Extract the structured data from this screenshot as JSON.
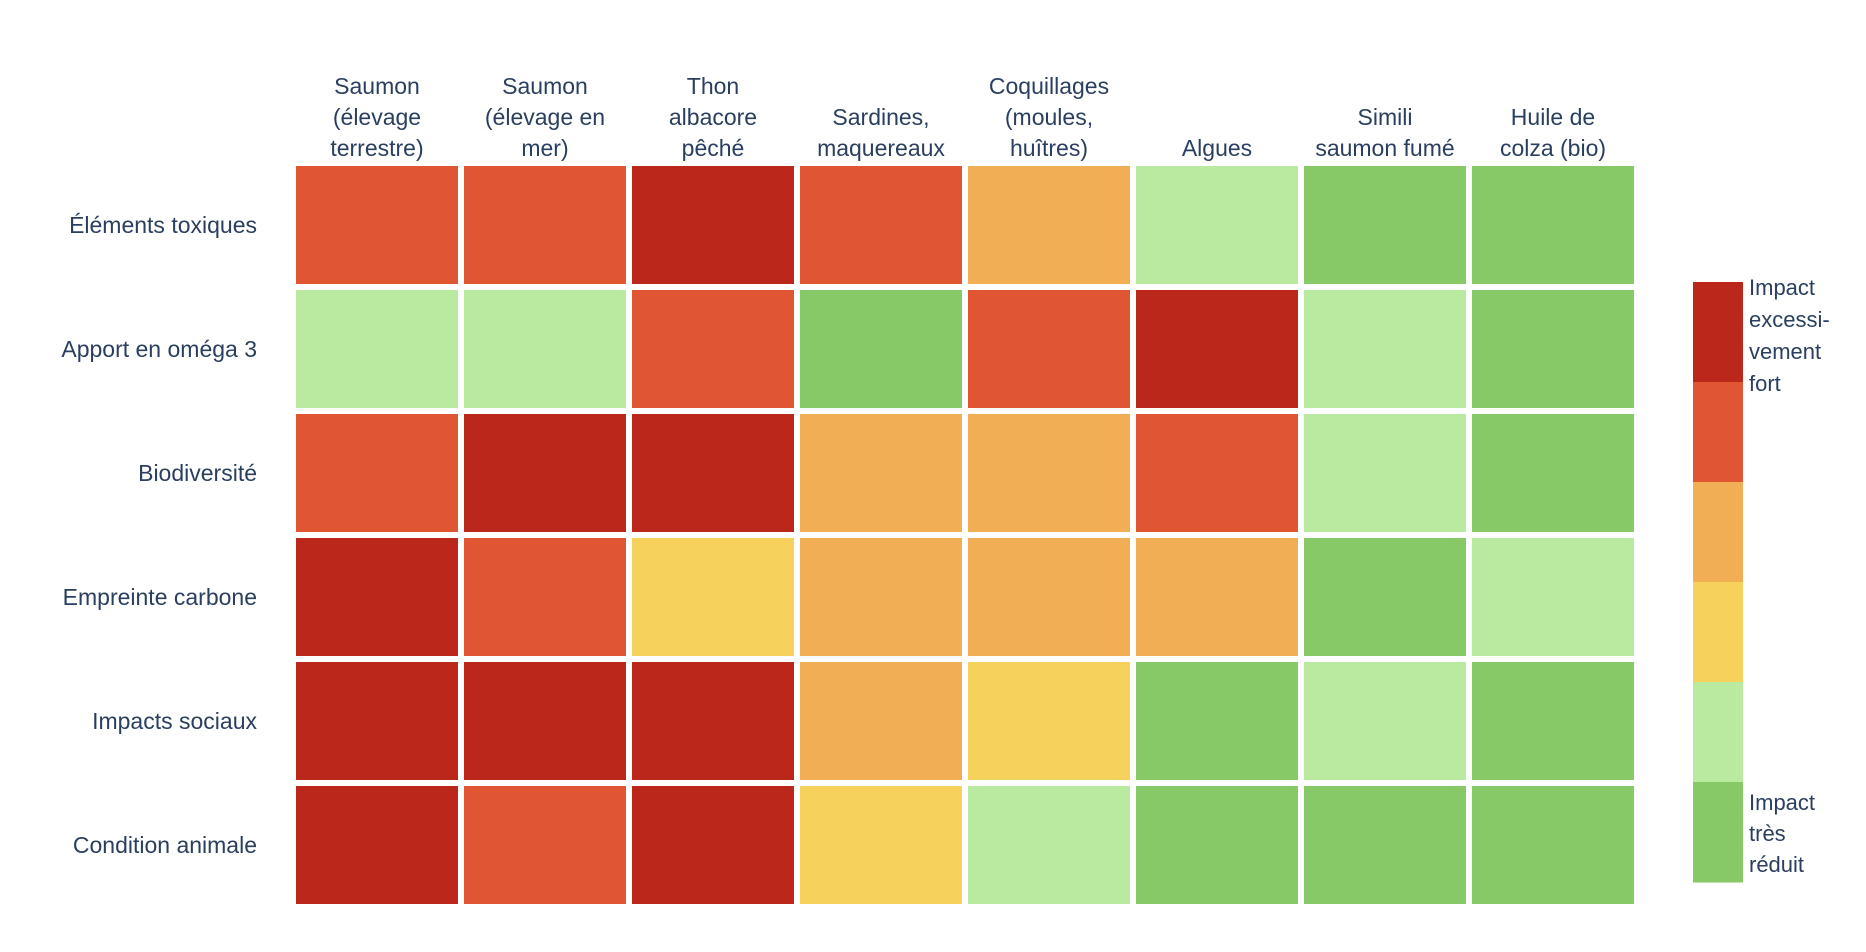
{
  "chart_data": {
    "type": "heatmap",
    "columns": [
      [
        "Saumon",
        "(élevage",
        "terrestre)"
      ],
      [
        "Saumon",
        "(élevage en",
        "mer)"
      ],
      [
        "Thon",
        "albacore",
        "pêché"
      ],
      [
        "Sardines,",
        "maquereaux"
      ],
      [
        "Coquillages",
        "(moules,",
        "huîtres)"
      ],
      [
        "Algues"
      ],
      [
        "Simili",
        "saumon fumé"
      ],
      [
        "Huile de",
        "colza (bio)"
      ]
    ],
    "rows": [
      "Éléments toxiques",
      "Apport en oméga 3",
      "Biodiversité",
      "Empreinte carbone",
      "Impacts sociaux",
      "Condition animale"
    ],
    "values": [
      [
        5,
        5,
        6,
        5,
        4,
        2,
        1,
        1
      ],
      [
        2,
        2,
        5,
        1,
        5,
        6,
        2,
        1
      ],
      [
        5,
        6,
        6,
        4,
        4,
        5,
        2,
        1
      ],
      [
        6,
        5,
        3,
        4,
        4,
        4,
        1,
        2
      ],
      [
        6,
        6,
        6,
        4,
        3,
        1,
        2,
        1
      ],
      [
        6,
        5,
        6,
        3,
        2,
        1,
        1,
        1
      ]
    ],
    "zlim": [
      1,
      6
    ],
    "colorscale": {
      "1": "#86c966",
      "2": "#baeaa0",
      "3": "#f6d25c",
      "4": "#f2ae55",
      "5": "#e05633",
      "6": "#bb271b"
    },
    "colorbar": {
      "max_label": [
        "Impact",
        "excessi-",
        "vement",
        "fort"
      ],
      "min_label": [
        "Impact",
        "très",
        "réduit"
      ]
    }
  }
}
